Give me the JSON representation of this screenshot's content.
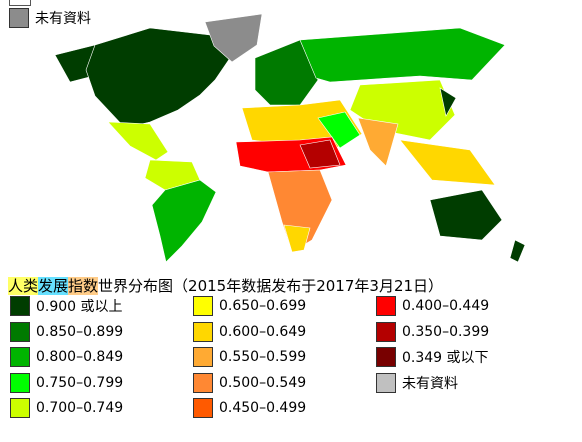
{
  "top_legend": {
    "label": "未有資料",
    "color": "#8c8c8c"
  },
  "title": {
    "parts": [
      {
        "text": "人类",
        "background": "#ffff66"
      },
      {
        "text": "发展",
        "background": "#66e0ff"
      },
      {
        "text": "指数",
        "background": "#ffcc88"
      },
      {
        "text": "世界分布图（2015年数据发布于2017年3月21日）"
      }
    ]
  },
  "legend": {
    "items": [
      {
        "label": "0.900 或以上",
        "color": "#003d00"
      },
      {
        "label": "0.850–0.899",
        "color": "#007a00"
      },
      {
        "label": "0.800–0.849",
        "color": "#00b400"
      },
      {
        "label": "0.750–0.799",
        "color": "#00ff00"
      },
      {
        "label": "0.700–0.749",
        "color": "#ccff00"
      },
      {
        "label": "0.650–0.699",
        "color": "#ffff00"
      },
      {
        "label": "0.600–0.649",
        "color": "#ffd700"
      },
      {
        "label": "0.550–0.599",
        "color": "#ffaa33"
      },
      {
        "label": "0.500–0.549",
        "color": "#ff8833"
      },
      {
        "label": "0.450–0.499",
        "color": "#ff5a00"
      },
      {
        "label": "0.400–0.449",
        "color": "#ff0000"
      },
      {
        "label": "0.350–0.399",
        "color": "#b40000"
      },
      {
        "label": "0.349 或以下",
        "color": "#780000"
      },
      {
        "label": "未有資料",
        "color": "#c0c0c0"
      }
    ]
  }
}
